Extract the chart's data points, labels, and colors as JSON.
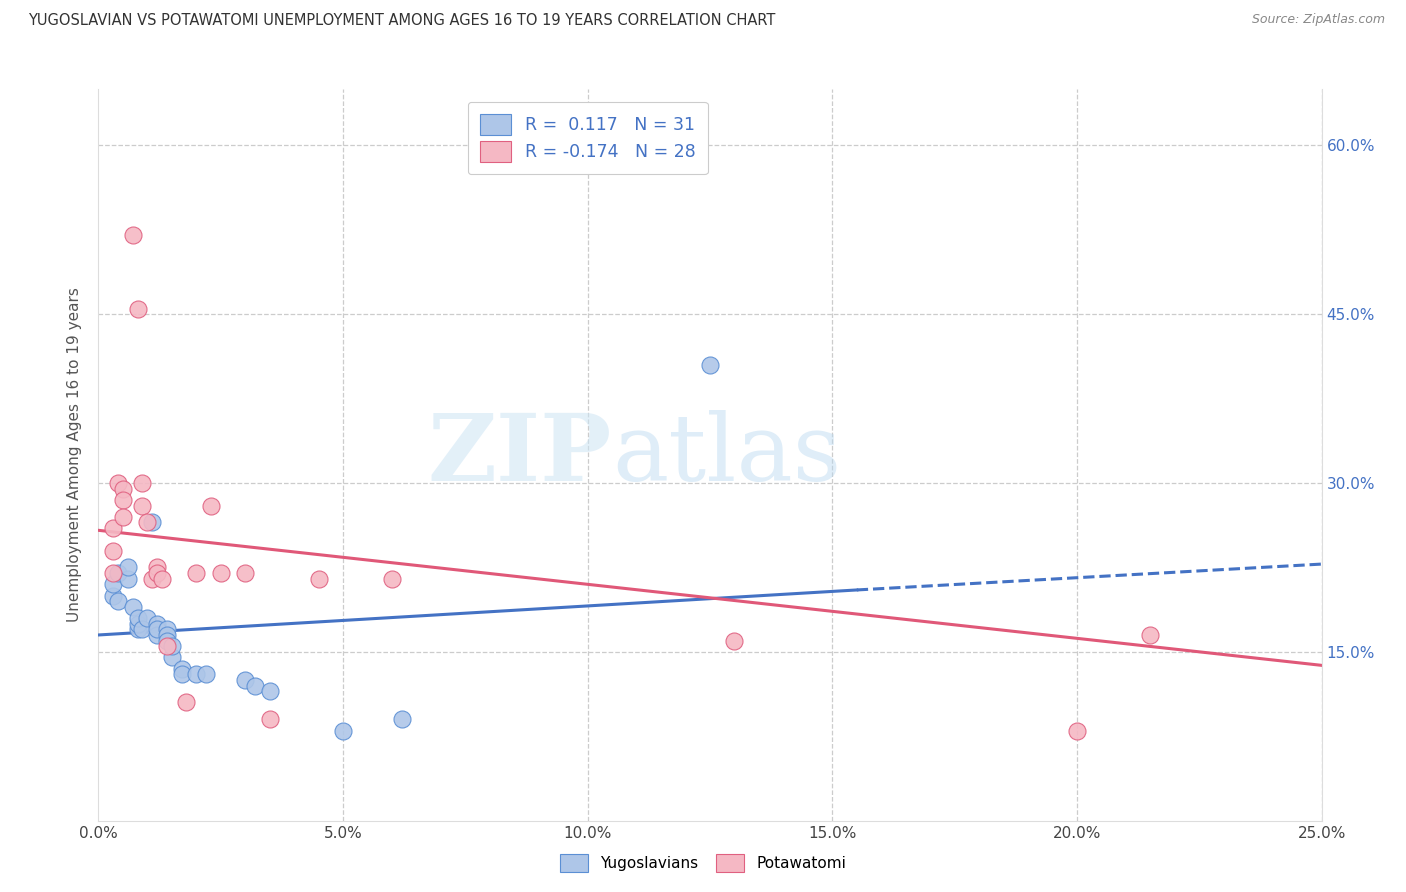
{
  "title": "YUGOSLAVIAN VS POTAWATOMI UNEMPLOYMENT AMONG AGES 16 TO 19 YEARS CORRELATION CHART",
  "source": "Source: ZipAtlas.com",
  "ylabel": "Unemployment Among Ages 16 to 19 years",
  "xlim": [
    0.0,
    0.25
  ],
  "ylim": [
    0.0,
    0.65
  ],
  "xticks": [
    0.0,
    0.05,
    0.1,
    0.15,
    0.2,
    0.25
  ],
  "yticks": [
    0.15,
    0.3,
    0.45,
    0.6
  ],
  "ytick_labels": [
    "15.0%",
    "30.0%",
    "45.0%",
    "60.0%"
  ],
  "xtick_labels": [
    "0.0%",
    "5.0%",
    "10.0%",
    "15.0%",
    "20.0%",
    "25.0%"
  ],
  "blue_color": "#aec6e8",
  "pink_color": "#f5b8c4",
  "blue_edge_color": "#5b8fd4",
  "pink_edge_color": "#e06080",
  "blue_line_color": "#4472c4",
  "pink_line_color": "#e05878",
  "watermark_zip": "ZIP",
  "watermark_atlas": "atlas",
  "blue_scatter": [
    [
      0.003,
      0.2
    ],
    [
      0.003,
      0.21
    ],
    [
      0.004,
      0.195
    ],
    [
      0.004,
      0.22
    ],
    [
      0.006,
      0.215
    ],
    [
      0.006,
      0.225
    ],
    [
      0.007,
      0.19
    ],
    [
      0.008,
      0.17
    ],
    [
      0.008,
      0.175
    ],
    [
      0.008,
      0.18
    ],
    [
      0.009,
      0.17
    ],
    [
      0.01,
      0.18
    ],
    [
      0.011,
      0.265
    ],
    [
      0.012,
      0.175
    ],
    [
      0.012,
      0.165
    ],
    [
      0.012,
      0.17
    ],
    [
      0.014,
      0.17
    ],
    [
      0.014,
      0.165
    ],
    [
      0.014,
      0.16
    ],
    [
      0.015,
      0.145
    ],
    [
      0.015,
      0.155
    ],
    [
      0.017,
      0.135
    ],
    [
      0.017,
      0.13
    ],
    [
      0.02,
      0.13
    ],
    [
      0.022,
      0.13
    ],
    [
      0.03,
      0.125
    ],
    [
      0.032,
      0.12
    ],
    [
      0.035,
      0.115
    ],
    [
      0.05,
      0.08
    ],
    [
      0.062,
      0.09
    ],
    [
      0.125,
      0.405
    ]
  ],
  "pink_scatter": [
    [
      0.003,
      0.22
    ],
    [
      0.003,
      0.24
    ],
    [
      0.003,
      0.26
    ],
    [
      0.004,
      0.3
    ],
    [
      0.005,
      0.295
    ],
    [
      0.005,
      0.285
    ],
    [
      0.005,
      0.27
    ],
    [
      0.007,
      0.52
    ],
    [
      0.008,
      0.455
    ],
    [
      0.009,
      0.3
    ],
    [
      0.009,
      0.28
    ],
    [
      0.01,
      0.265
    ],
    [
      0.011,
      0.215
    ],
    [
      0.012,
      0.225
    ],
    [
      0.012,
      0.22
    ],
    [
      0.013,
      0.215
    ],
    [
      0.014,
      0.155
    ],
    [
      0.018,
      0.105
    ],
    [
      0.02,
      0.22
    ],
    [
      0.023,
      0.28
    ],
    [
      0.025,
      0.22
    ],
    [
      0.03,
      0.22
    ],
    [
      0.035,
      0.09
    ],
    [
      0.045,
      0.215
    ],
    [
      0.06,
      0.215
    ],
    [
      0.13,
      0.16
    ],
    [
      0.2,
      0.08
    ],
    [
      0.215,
      0.165
    ]
  ],
  "blue_trendline_solid": [
    [
      0.0,
      0.165
    ],
    [
      0.155,
      0.205
    ]
  ],
  "blue_trendline_dashed": [
    [
      0.155,
      0.205
    ],
    [
      0.25,
      0.228
    ]
  ],
  "pink_trendline": [
    [
      0.0,
      0.258
    ],
    [
      0.25,
      0.138
    ]
  ]
}
